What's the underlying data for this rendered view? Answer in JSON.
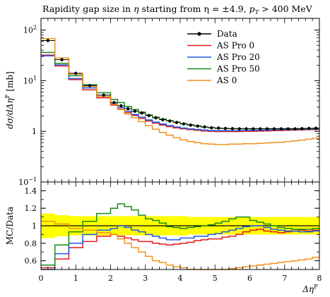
{
  "chart_data": [
    {
      "panel": "main",
      "type": "line",
      "step": true,
      "title": "Rapidity gap size in η starting from η = ±4.9, p_T > 400 MeV",
      "title_parts": {
        "prefix": "Rapidity gap size in ",
        "eta_symbol": "η",
        "middle": " starting from ",
        "eta_eq": "η = ±4.9, ",
        "pt_symbol": "p",
        "pt_sub": "T",
        "pt_tail": " > 400 MeV"
      },
      "ylabel": "dσ/dΔη^F [mb]",
      "ylabel_parts": {
        "main": "dσ/dΔη",
        "sup": "F",
        "tail": " [mb]"
      },
      "xlabel": "",
      "yscale": "log",
      "xlim": [
        0,
        8
      ],
      "ylim": [
        0.1,
        170
      ],
      "y_ticks": [
        {
          "value": 0.1,
          "base": "10",
          "exp": "−1"
        },
        {
          "value": 1,
          "base": "1",
          "exp": ""
        },
        {
          "value": 10,
          "base": "10",
          "exp": "1"
        },
        {
          "value": 100,
          "base": "10",
          "exp": "2"
        }
      ],
      "bin_edges": [
        0,
        0.4,
        0.8,
        1.2,
        1.6,
        2.0,
        2.2,
        2.4,
        2.6,
        2.8,
        3.0,
        3.2,
        3.4,
        3.6,
        3.8,
        4.0,
        4.2,
        4.4,
        4.6,
        4.8,
        5.0,
        5.2,
        5.4,
        5.6,
        5.8,
        6.0,
        6.2,
        6.4,
        6.6,
        6.8,
        7.0,
        7.2,
        7.4,
        7.6,
        7.8,
        8.0
      ],
      "legend_position": "top-right",
      "legend": [
        "Data",
        "AS Pro 0",
        "AS Pro 20",
        "AS Pro 50",
        "AS 0"
      ],
      "series": [
        {
          "name": "Data",
          "color": "#000000",
          "kind": "points",
          "values": [
            62,
            26,
            14,
            8.0,
            5.2,
            3.7,
            3.2,
            2.8,
            2.5,
            2.3,
            2.05,
            1.85,
            1.7,
            1.6,
            1.5,
            1.4,
            1.33,
            1.27,
            1.22,
            1.18,
            1.16,
            1.14,
            1.13,
            1.12,
            1.12,
            1.12,
            1.12,
            1.12,
            1.12,
            1.12,
            1.12,
            1.12,
            1.13,
            1.14,
            1.15
          ]
        },
        {
          "name": "AS Pro 0",
          "color": "#e41a1c",
          "kind": "step",
          "values": [
            32,
            19.5,
            10.5,
            6.6,
            4.6,
            3.3,
            2.75,
            2.35,
            2.05,
            1.8,
            1.6,
            1.45,
            1.33,
            1.24,
            1.17,
            1.12,
            1.08,
            1.05,
            1.02,
            1.0,
            0.99,
            0.99,
            0.99,
            0.99,
            1.0,
            1.0,
            1.01,
            1.02,
            1.03,
            1.04,
            1.05,
            1.06,
            1.07,
            1.08,
            1.08
          ]
        },
        {
          "name": "AS Pro 20",
          "color": "#1f5ae6",
          "kind": "step",
          "values": [
            31,
            20.5,
            11.0,
            7.2,
            4.9,
            3.5,
            2.95,
            2.5,
            2.15,
            1.9,
            1.68,
            1.52,
            1.4,
            1.3,
            1.22,
            1.16,
            1.12,
            1.09,
            1.06,
            1.04,
            1.03,
            1.03,
            1.03,
            1.03,
            1.04,
            1.05,
            1.05,
            1.06,
            1.07,
            1.08,
            1.09,
            1.1,
            1.1,
            1.11,
            1.11
          ]
        },
        {
          "name": "AS Pro 50",
          "color": "#1a8a1a",
          "kind": "step",
          "values": [
            36,
            22,
            12.5,
            8.3,
            5.8,
            4.3,
            3.7,
            3.1,
            2.7,
            2.4,
            2.1,
            1.9,
            1.75,
            1.62,
            1.52,
            1.42,
            1.35,
            1.28,
            1.22,
            1.18,
            1.15,
            1.14,
            1.13,
            1.13,
            1.13,
            1.13,
            1.13,
            1.13,
            1.13,
            1.13,
            1.13,
            1.13,
            1.14,
            1.14,
            1.15
          ]
        },
        {
          "name": "AS 0",
          "color": "#f2911d",
          "kind": "step",
          "values": [
            68,
            28,
            13.5,
            7.7,
            4.9,
            3.4,
            2.7,
            2.2,
            1.85,
            1.55,
            1.3,
            1.1,
            0.95,
            0.84,
            0.75,
            0.68,
            0.63,
            0.6,
            0.57,
            0.56,
            0.55,
            0.55,
            0.56,
            0.56,
            0.57,
            0.57,
            0.58,
            0.59,
            0.6,
            0.61,
            0.63,
            0.65,
            0.67,
            0.7,
            0.73
          ]
        }
      ]
    },
    {
      "panel": "ratio",
      "type": "line",
      "step": true,
      "ylabel": "MC/Data",
      "xlabel": "Δη^F",
      "xlabel_parts": {
        "main": "Δη",
        "sup": "F"
      },
      "xlim": [
        0,
        8
      ],
      "ylim": [
        0.5,
        1.5
      ],
      "x_ticks": [
        0,
        1,
        2,
        3,
        4,
        5,
        6,
        7,
        8
      ],
      "y_ticks": [
        0.6,
        0.8,
        1,
        1.2,
        1.4
      ],
      "band": {
        "color": "#ffff00",
        "lower": [
          0.86,
          0.88,
          0.89,
          0.89,
          0.89,
          0.89,
          0.89,
          0.89,
          0.89,
          0.89,
          0.89,
          0.89,
          0.89,
          0.89,
          0.89,
          0.89,
          0.9,
          0.9,
          0.9,
          0.9,
          0.9,
          0.9,
          0.9,
          0.9,
          0.9,
          0.9,
          0.9,
          0.9,
          0.9,
          0.9,
          0.9,
          0.9,
          0.9,
          0.9,
          0.9
        ],
        "upper": [
          1.14,
          1.12,
          1.11,
          1.11,
          1.11,
          1.11,
          1.11,
          1.11,
          1.11,
          1.11,
          1.11,
          1.11,
          1.11,
          1.11,
          1.11,
          1.11,
          1.1,
          1.1,
          1.1,
          1.1,
          1.1,
          1.1,
          1.1,
          1.1,
          1.1,
          1.1,
          1.1,
          1.1,
          1.1,
          1.1,
          1.1,
          1.1,
          1.1,
          1.1,
          1.1
        ]
      },
      "series": [
        {
          "name": "AS Pro 0",
          "color": "#e41a1c",
          "values": [
            0.52,
            0.62,
            0.75,
            0.82,
            0.88,
            0.9,
            0.88,
            0.86,
            0.84,
            0.82,
            0.82,
            0.8,
            0.79,
            0.78,
            0.79,
            0.8,
            0.81,
            0.83,
            0.84,
            0.85,
            0.85,
            0.87,
            0.88,
            0.9,
            0.93,
            0.95,
            0.96,
            0.94,
            0.93,
            0.92,
            0.93,
            0.94,
            0.95,
            0.94,
            0.95
          ]
        },
        {
          "name": "AS Pro 20",
          "color": "#1f5ae6",
          "values": [
            0.5,
            0.68,
            0.8,
            0.9,
            0.95,
            0.97,
            1.0,
            0.98,
            0.95,
            0.93,
            0.9,
            0.88,
            0.86,
            0.84,
            0.84,
            0.86,
            0.86,
            0.88,
            0.88,
            0.9,
            0.91,
            0.93,
            0.95,
            0.97,
            0.99,
            1.0,
            1.0,
            0.98,
            0.96,
            0.95,
            0.94,
            0.94,
            0.93,
            0.93,
            0.94
          ]
        },
        {
          "name": "AS Pro 50",
          "color": "#1a8a1a",
          "values": [
            0.55,
            0.78,
            0.93,
            1.05,
            1.14,
            1.2,
            1.25,
            1.22,
            1.18,
            1.12,
            1.08,
            1.06,
            1.03,
            0.99,
            0.98,
            0.97,
            0.98,
            0.99,
            1.0,
            1.01,
            1.03,
            1.05,
            1.08,
            1.1,
            1.1,
            1.06,
            1.04,
            1.02,
            1.0,
            0.98,
            0.97,
            0.96,
            0.96,
            0.96,
            0.97
          ]
        },
        {
          "name": "AS 0",
          "color": "#f2911d",
          "values": [
            1.05,
            1.02,
            0.97,
            0.95,
            0.92,
            0.9,
            0.85,
            0.8,
            0.75,
            0.7,
            0.65,
            0.6,
            0.58,
            0.55,
            0.53,
            0.52,
            0.5,
            0.49,
            0.49,
            0.49,
            0.49,
            0.5,
            0.51,
            0.52,
            0.53,
            0.54,
            0.55,
            0.56,
            0.57,
            0.58,
            0.59,
            0.6,
            0.61,
            0.62,
            0.64
          ]
        }
      ]
    }
  ]
}
